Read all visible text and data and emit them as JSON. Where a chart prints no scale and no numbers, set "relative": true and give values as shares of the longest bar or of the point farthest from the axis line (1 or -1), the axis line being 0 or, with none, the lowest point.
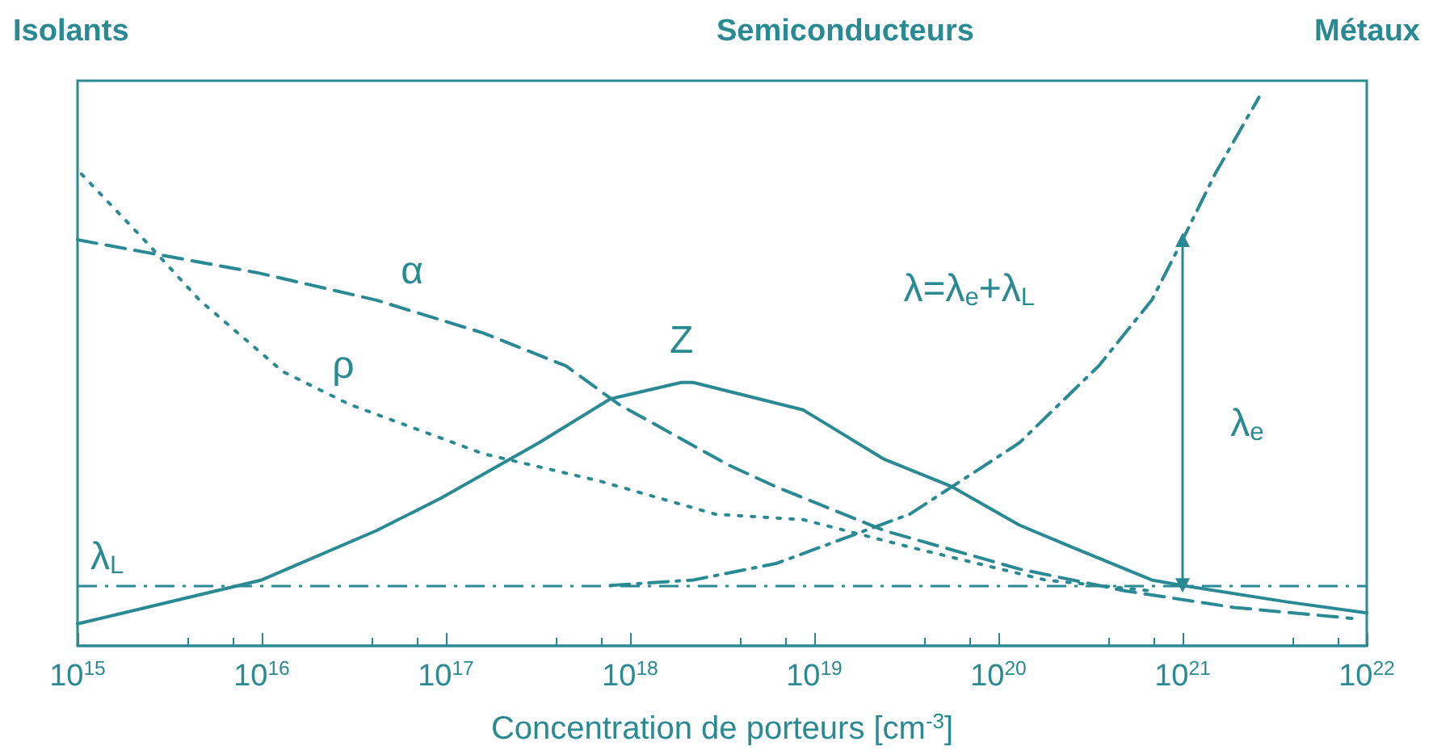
{
  "chart_data": {
    "type": "line",
    "relative": true,
    "log": "x",
    "xlabel": "Concentration de porteurs [cm$^{-3}$]",
    "xlim": [
      1000000000000000.0,
      1e+22
    ],
    "xticks": [
      {
        "value": 1000000000000000.0,
        "label": "10$^{15}$"
      },
      {
        "value": 1e+16,
        "label": "10$^{16}$"
      },
      {
        "value": 1e+17,
        "label": "10$^{17}$"
      },
      {
        "value": 1e+18,
        "label": "10$^{18}$"
      },
      {
        "value": 1e+19,
        "label": "10$^{19}$"
      },
      {
        "value": 1e+20,
        "label": "10$^{20}$"
      },
      {
        "value": 1e+21,
        "label": "10$^{21}$"
      },
      {
        "value": 1e+22,
        "label": "10$^{22}$"
      }
    ],
    "grid": false,
    "legend": false,
    "marker": "none",
    "series": [
      {
        "name": "Z",
        "color": "#2a8a94",
        "line_style": "solid",
        "x": [
          1000000000000000.0,
          1e+16,
          4.2e+16,
          9.5e+16,
          3.2e+17,
          7.8e+17,
          1.9e+18,
          2.2e+18,
          8.7e+18,
          2.4e+19,
          5.6e+19,
          1.3e+20,
          2.5e+20,
          6.8e+20,
          1e+21,
          3.7e+21,
          1e+22
        ],
        "values": [
          0.04,
          0.12,
          0.21,
          0.27,
          0.37,
          0.45,
          0.48,
          0.48,
          0.43,
          0.34,
          0.29,
          0.22,
          0.18,
          0.12,
          0.11,
          0.08,
          0.06
        ]
      },
      {
        "name": "α",
        "color": "#2a8a94",
        "line_style": "dashed",
        "x": [
          1000000000000000.0,
          9500000000000000.0,
          4.2e+16,
          1.6e+17,
          4.5e+17,
          8.7e+17,
          3.4e+18,
          6.2e+18,
          2.4e+19,
          1.3e+20,
          4.9e+20,
          1.9e+21,
          8.3e+21
        ],
        "values": [
          0.74,
          0.68,
          0.63,
          0.57,
          0.51,
          0.44,
          0.33,
          0.29,
          0.21,
          0.14,
          0.1,
          0.07,
          0.05
        ]
      },
      {
        "name": "ρ",
        "color": "#2a8a94",
        "line_style": "dotted",
        "x": [
          1050000000000000.0,
          2300000000000000.0,
          4600000000000000.0,
          1.3e+16,
          3e+16,
          1.6e+17,
          6.9e+17,
          2.9e+18,
          8.7e+18,
          3.3e+19,
          1.8e+20,
          6.8e+20
        ],
        "values": [
          0.86,
          0.74,
          0.63,
          0.5,
          0.44,
          0.35,
          0.3,
          0.24,
          0.23,
          0.18,
          0.12,
          0.1
        ]
      },
      {
        "name": "λ=λ$_{e}$+λ$_{L}$",
        "color": "#2a8a94",
        "line_style": "dashdot",
        "x": [
          7.8e+17,
          2.2e+18,
          6.2e+18,
          3.3e+19,
          5.6e+19,
          1.3e+20,
          3.5e+20,
          6.8e+20,
          1e+21,
          1.5e+21,
          2.6e+21
        ],
        "values": [
          0.11,
          0.12,
          0.15,
          0.24,
          0.29,
          0.37,
          0.51,
          0.63,
          0.74,
          0.86,
          1.0
        ]
      },
      {
        "name": "λ$_{e}$",
        "color": "#2a8a94",
        "line_style": "solid",
        "x": [
          1e+21,
          1e+21
        ],
        "values": [
          0.11,
          0.74
        ]
      }
    ],
    "ref_lines": [
      {
        "axis": "y",
        "value": 0.11,
        "label": "λ$_{L}$",
        "color": "#2a8a94",
        "line_style": "dashdot"
      }
    ],
    "annotations": [
      "Isolants",
      "Semiconducteurs",
      "Métaux"
    ]
  }
}
